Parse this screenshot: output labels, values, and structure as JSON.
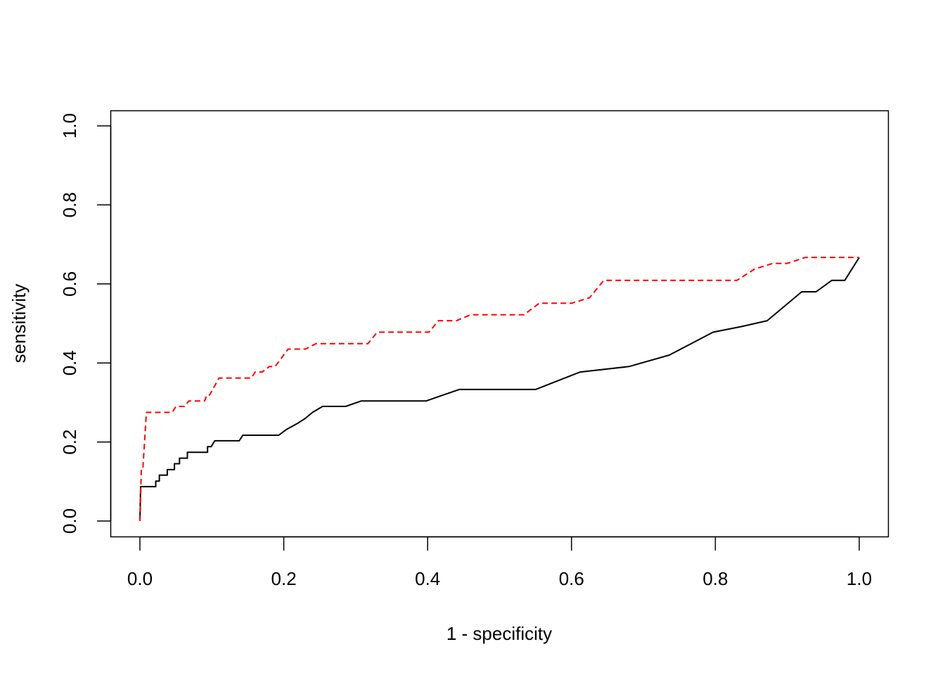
{
  "chart_data": {
    "type": "line",
    "title": "",
    "xlabel": "1 - specificity",
    "ylabel": "sensitivity",
    "xlim": [
      0,
      1
    ],
    "ylim": [
      0,
      1
    ],
    "xticks": [
      "0.0",
      "0.2",
      "0.4",
      "0.6",
      "0.8",
      "1.0"
    ],
    "yticks": [
      "0.0",
      "0.2",
      "0.4",
      "0.6",
      "0.8",
      "1.0"
    ],
    "grid": false,
    "legend": "none",
    "series": [
      {
        "color": "#000000",
        "line_style": "solid",
        "points": [
          [
            0.0,
            0.0
          ],
          [
            0.001,
            0.087
          ],
          [
            0.022,
            0.087
          ],
          [
            0.022,
            0.101
          ],
          [
            0.027,
            0.101
          ],
          [
            0.027,
            0.116
          ],
          [
            0.038,
            0.116
          ],
          [
            0.038,
            0.13
          ],
          [
            0.048,
            0.13
          ],
          [
            0.048,
            0.145
          ],
          [
            0.055,
            0.145
          ],
          [
            0.055,
            0.159
          ],
          [
            0.066,
            0.159
          ],
          [
            0.066,
            0.174
          ],
          [
            0.094,
            0.174
          ],
          [
            0.094,
            0.188
          ],
          [
            0.099,
            0.188
          ],
          [
            0.104,
            0.203
          ],
          [
            0.138,
            0.203
          ],
          [
            0.143,
            0.217
          ],
          [
            0.193,
            0.217
          ],
          [
            0.204,
            0.232
          ],
          [
            0.22,
            0.248
          ],
          [
            0.23,
            0.26
          ],
          [
            0.24,
            0.275
          ],
          [
            0.254,
            0.29
          ],
          [
            0.286,
            0.29
          ],
          [
            0.308,
            0.304
          ],
          [
            0.398,
            0.304
          ],
          [
            0.444,
            0.333
          ],
          [
            0.55,
            0.333
          ],
          [
            0.612,
            0.377
          ],
          [
            0.68,
            0.391
          ],
          [
            0.736,
            0.42
          ],
          [
            0.797,
            0.478
          ],
          [
            0.836,
            0.492
          ],
          [
            0.872,
            0.507
          ],
          [
            0.92,
            0.58
          ],
          [
            0.94,
            0.58
          ],
          [
            0.962,
            0.609
          ],
          [
            0.98,
            0.609
          ],
          [
            1.0,
            0.667
          ]
        ]
      },
      {
        "color": "#ff0000",
        "line_style": "dashed",
        "points": [
          [
            0.0,
            0.0
          ],
          [
            0.002,
            0.13
          ],
          [
            0.004,
            0.13
          ],
          [
            0.009,
            0.275
          ],
          [
            0.045,
            0.275
          ],
          [
            0.05,
            0.29
          ],
          [
            0.062,
            0.29
          ],
          [
            0.068,
            0.304
          ],
          [
            0.09,
            0.304
          ],
          [
            0.093,
            0.319
          ],
          [
            0.097,
            0.319
          ],
          [
            0.11,
            0.362
          ],
          [
            0.155,
            0.362
          ],
          [
            0.16,
            0.377
          ],
          [
            0.17,
            0.377
          ],
          [
            0.18,
            0.391
          ],
          [
            0.188,
            0.391
          ],
          [
            0.206,
            0.435
          ],
          [
            0.23,
            0.435
          ],
          [
            0.245,
            0.449
          ],
          [
            0.317,
            0.449
          ],
          [
            0.33,
            0.478
          ],
          [
            0.402,
            0.478
          ],
          [
            0.415,
            0.507
          ],
          [
            0.44,
            0.507
          ],
          [
            0.46,
            0.522
          ],
          [
            0.534,
            0.522
          ],
          [
            0.555,
            0.551
          ],
          [
            0.6,
            0.551
          ],
          [
            0.625,
            0.565
          ],
          [
            0.645,
            0.609
          ],
          [
            0.83,
            0.609
          ],
          [
            0.855,
            0.638
          ],
          [
            0.88,
            0.652
          ],
          [
            0.9,
            0.652
          ],
          [
            0.925,
            0.667
          ],
          [
            1.0,
            0.667
          ]
        ]
      }
    ]
  }
}
